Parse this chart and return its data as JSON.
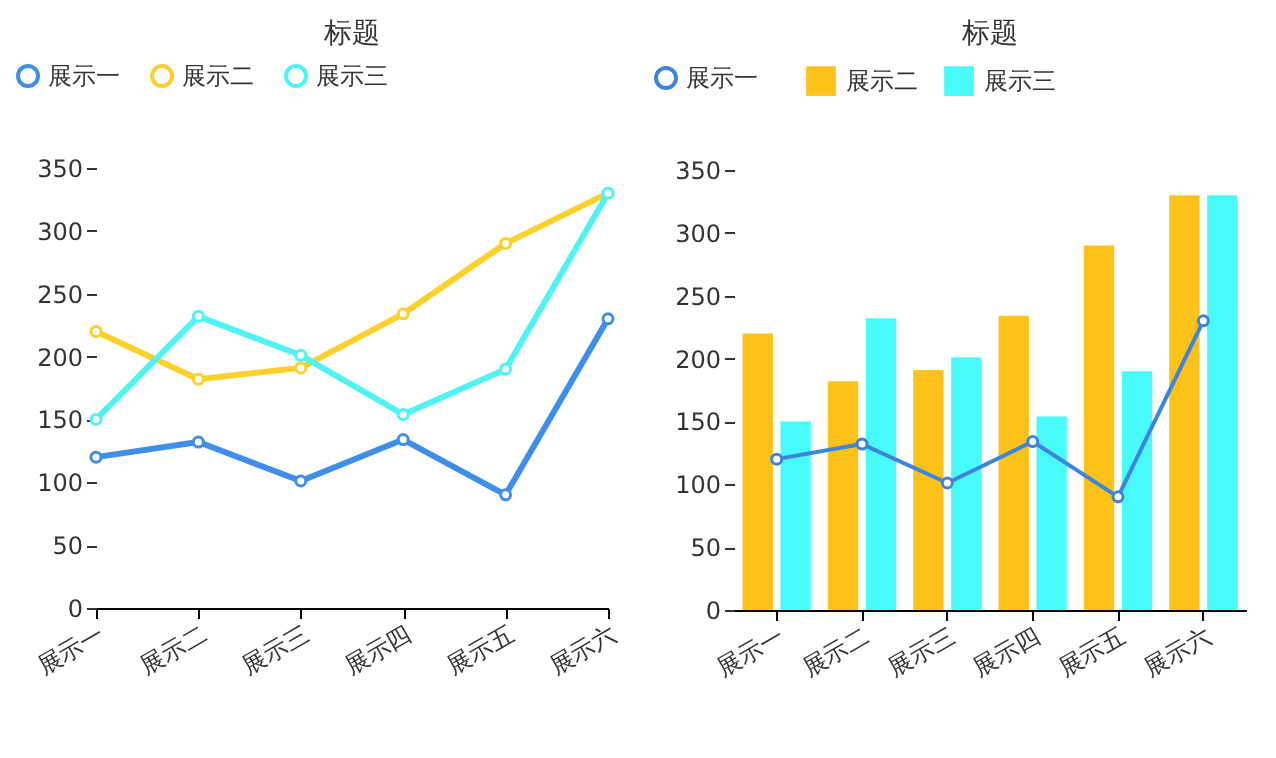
{
  "chart_data": [
    {
      "type": "line",
      "title": "标题",
      "categories": [
        "展示一",
        "展示二",
        "展示三",
        "展示四",
        "展示五",
        "展示六"
      ],
      "ylim": [
        0,
        350
      ],
      "yticks": [
        0,
        50,
        100,
        150,
        200,
        250,
        300,
        350
      ],
      "grid": false,
      "legend": "top left",
      "marker": "circle",
      "series": [
        {
          "name": "展示一",
          "color": "#3f8fea",
          "values": [
            120,
            132,
            101,
            134,
            90,
            230
          ]
        },
        {
          "name": "展示二",
          "color": "#fdd12a",
          "values": [
            220,
            182,
            191,
            234,
            290,
            330
          ]
        },
        {
          "name": "展示三",
          "color": "#4ff4f2",
          "values": [
            150,
            232,
            201,
            154,
            190,
            330
          ]
        }
      ]
    },
    {
      "type": "bar",
      "title": "标题",
      "categories": [
        "展示一",
        "展示二",
        "展示三",
        "展示四",
        "展示五",
        "展示六"
      ],
      "ylim": [
        0,
        350
      ],
      "yticks": [
        0,
        50,
        100,
        150,
        200,
        250,
        300,
        350
      ],
      "grid": false,
      "legend": "top left",
      "marker": "circle",
      "series": [
        {
          "name": "展示一",
          "type": "line",
          "color": "#3d85dc",
          "values": [
            120,
            132,
            101,
            134,
            90,
            230
          ]
        },
        {
          "name": "展示二",
          "color": "#fdc21a",
          "values": [
            220,
            182,
            191,
            234,
            290,
            330
          ]
        },
        {
          "name": "展示三",
          "color": "#48fbfb",
          "values": [
            150,
            232,
            201,
            154,
            190,
            330
          ]
        }
      ]
    }
  ]
}
